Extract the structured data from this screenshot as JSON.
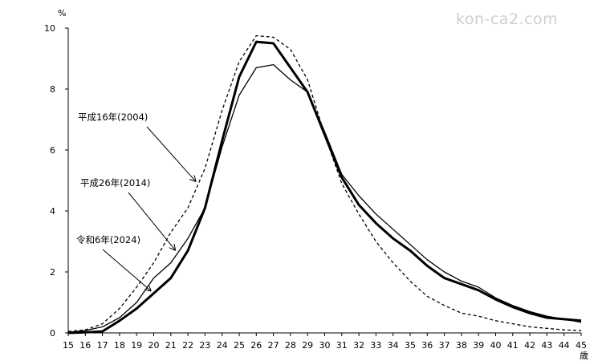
{
  "watermark": "kon-ca2.com",
  "chart_data": {
    "type": "line",
    "title": "",
    "xlabel": "歳",
    "ylabel": "%",
    "xlim": [
      15,
      45
    ],
    "ylim": [
      0,
      10
    ],
    "x": [
      15,
      16,
      17,
      18,
      19,
      20,
      21,
      22,
      23,
      24,
      25,
      26,
      27,
      28,
      29,
      30,
      31,
      32,
      33,
      34,
      35,
      36,
      37,
      38,
      39,
      40,
      41,
      42,
      43,
      44,
      45
    ],
    "x_ticks": [
      "15",
      "16",
      "17",
      "18",
      "19",
      "20",
      "21",
      "22",
      "23",
      "24",
      "25",
      "26",
      "27",
      "28",
      "29",
      "30",
      "31",
      "32",
      "33",
      "34",
      "35",
      "36",
      "37",
      "38",
      "39",
      "40",
      "41",
      "42",
      "43",
      "44",
      "45"
    ],
    "y_ticks": [
      "0",
      "2",
      "4",
      "6",
      "8",
      "10"
    ],
    "y_tick_values": [
      0,
      2,
      4,
      6,
      8,
      10
    ],
    "series": [
      {
        "name": "平成16年(2004)",
        "style": "dashed",
        "values": [
          0.05,
          0.1,
          0.3,
          0.8,
          1.5,
          2.3,
          3.3,
          4.1,
          5.4,
          7.3,
          8.9,
          9.75,
          9.7,
          9.3,
          8.3,
          6.5,
          4.9,
          3.9,
          3.0,
          2.3,
          1.7,
          1.2,
          0.9,
          0.65,
          0.55,
          0.4,
          0.3,
          0.2,
          0.15,
          0.1,
          0.08
        ]
      },
      {
        "name": "平成26年(2014)",
        "style": "thin",
        "values": [
          0.02,
          0.08,
          0.2,
          0.5,
          1.0,
          1.8,
          2.3,
          3.1,
          4.1,
          6.1,
          7.8,
          8.7,
          8.8,
          8.3,
          7.9,
          6.6,
          5.2,
          4.5,
          3.9,
          3.4,
          2.9,
          2.4,
          2.0,
          1.7,
          1.5,
          1.15,
          0.9,
          0.7,
          0.55,
          0.45,
          0.35
        ]
      },
      {
        "name": "令和6年(2024)",
        "style": "bold",
        "values": [
          0.0,
          0.02,
          0.05,
          0.4,
          0.8,
          1.3,
          1.8,
          2.7,
          4.1,
          6.3,
          8.4,
          9.55,
          9.5,
          8.7,
          7.9,
          6.5,
          5.1,
          4.2,
          3.6,
          3.1,
          2.7,
          2.2,
          1.8,
          1.6,
          1.4,
          1.1,
          0.85,
          0.65,
          0.5,
          0.45,
          0.4
        ]
      }
    ],
    "annotations": [
      {
        "text": "平成16年(2004)",
        "series": 0,
        "target_x": 22.6
      },
      {
        "text": "平成26年(2014)",
        "series": 1,
        "target_x": 21.4
      },
      {
        "text": "令和6年(2024)",
        "series": 2,
        "target_x": 20.0
      }
    ]
  }
}
